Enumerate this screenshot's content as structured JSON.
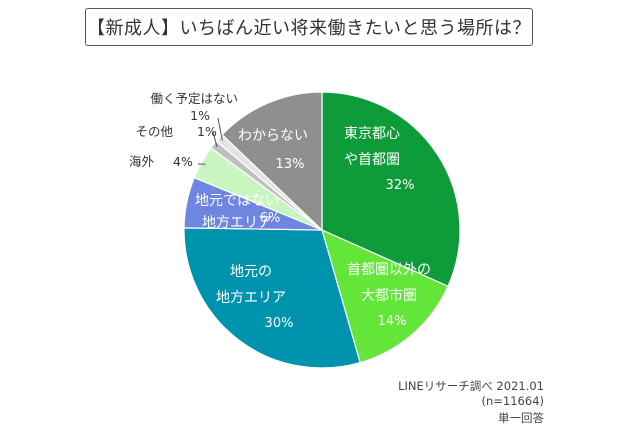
{
  "chart_data": {
    "type": "pie",
    "title": "【新成人】いちばん近い将来働きたいと思う場所は？",
    "slices": [
      {
        "label": [
          "東京都心",
          "や首都圏"
        ],
        "value": 32,
        "value_label": "32%",
        "color": "#0e9b3a",
        "text_color": "#ffffff"
      },
      {
        "label": [
          "首都圏以外の",
          "大都市圏"
        ],
        "value": 14,
        "value_label": "14%",
        "color": "#63e53a",
        "text_color": "#ffffff"
      },
      {
        "label": [
          "地元の",
          "地方エリア"
        ],
        "value": 30,
        "value_label": "30%",
        "color": "#0093ad",
        "text_color": "#ffffff"
      },
      {
        "label": [
          "地元ではない",
          "地方エリア"
        ],
        "value": 6,
        "value_label": "6%",
        "color": "#6e86e0",
        "text_color": "#ffffff"
      },
      {
        "label": [
          "海外"
        ],
        "value": 4,
        "value_label": "4%",
        "color": "#c9f5c0",
        "text_color": "#333333"
      },
      {
        "label": [
          "その他"
        ],
        "value": 1,
        "value_label": "1%",
        "color": "#bfbfbf",
        "text_color": "#333333"
      },
      {
        "label": [
          "働く予定はない"
        ],
        "value": 1,
        "value_label": "1%",
        "color": "#e3e3e3",
        "text_color": "#333333"
      },
      {
        "label": [
          "わからない"
        ],
        "value": 13,
        "value_label": "13%",
        "color": "#8f8f8f",
        "text_color": "#ffffff"
      }
    ]
  },
  "source": {
    "line1": "LINEリサーチ調べ 2021.01",
    "line2": "(n=11664)",
    "line3": "単一回答"
  }
}
